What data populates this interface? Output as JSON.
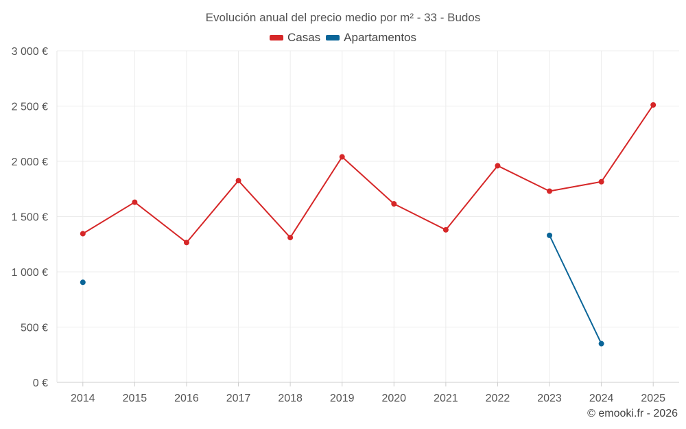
{
  "chart_data": {
    "type": "line",
    "title": "Evolución anual del precio medio por m² - 33 - Budos",
    "categories": [
      "2014",
      "2015",
      "2016",
      "2017",
      "2018",
      "2019",
      "2020",
      "2021",
      "2022",
      "2023",
      "2024",
      "2025"
    ],
    "y_ticks": [
      0,
      500,
      1000,
      1500,
      2000,
      2500,
      3000
    ],
    "y_tick_labels": [
      "0 €",
      "500 €",
      "1 000 €",
      "1 500 €",
      "2 000 €",
      "2 500 €",
      "3 000 €"
    ],
    "ylim": [
      0,
      3000
    ],
    "grid": true,
    "legend_position": "top-center",
    "series": [
      {
        "name": "Casas",
        "color": "#d62728",
        "values": [
          1345,
          1630,
          1265,
          1825,
          1310,
          2040,
          1615,
          1380,
          1960,
          1730,
          1815,
          2510
        ]
      },
      {
        "name": "Apartamentos",
        "color": "#0a6598",
        "values": [
          905,
          null,
          null,
          null,
          null,
          null,
          null,
          null,
          null,
          1330,
          350,
          null
        ]
      }
    ]
  },
  "credit": "© emooki.fr - 2026"
}
